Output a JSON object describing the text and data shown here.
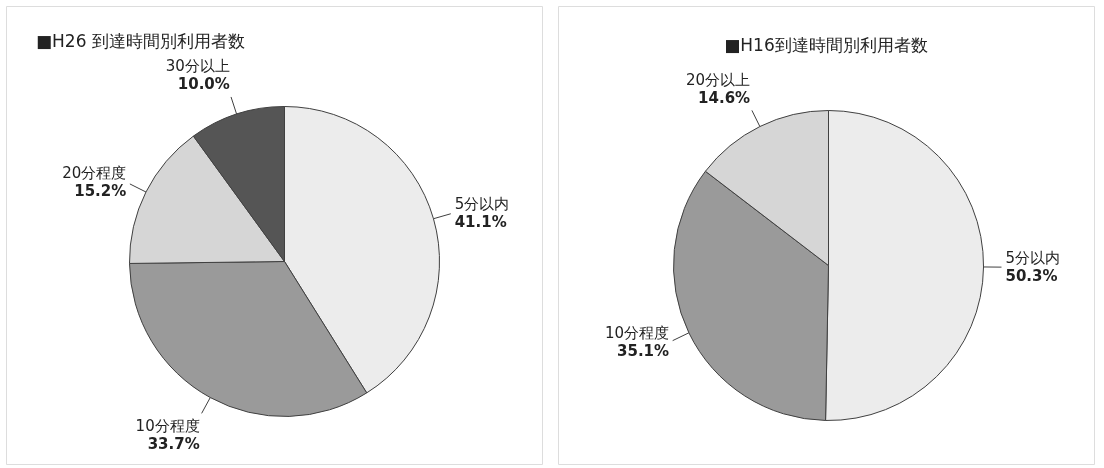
{
  "chart_data": [
    {
      "type": "pie",
      "title": "■H26 到達時間別利用者数",
      "categories": [
        "5分以内",
        "10分程度",
        "20分程度",
        "30分以上"
      ],
      "values": [
        41.1,
        33.7,
        15.2,
        10.0
      ],
      "value_labels": [
        "41.1%",
        "33.7%",
        "15.2%",
        "10.0%"
      ],
      "colors": [
        "#ececec",
        "#9a9a9a",
        "#d6d6d6",
        "#555555"
      ]
    },
    {
      "type": "pie",
      "title": "■H16到達時間別利用者数",
      "categories": [
        "5分以内",
        "10分程度",
        "20分以上"
      ],
      "values": [
        50.3,
        35.1,
        14.6
      ],
      "value_labels": [
        "50.3%",
        "35.1%",
        "14.6%"
      ],
      "colors": [
        "#ececec",
        "#9a9a9a",
        "#d6d6d6"
      ]
    }
  ]
}
